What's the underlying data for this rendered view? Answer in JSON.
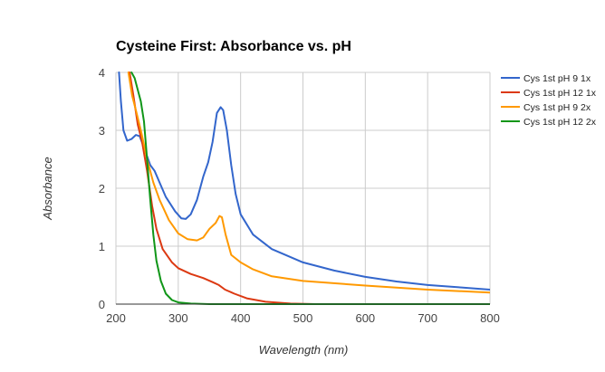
{
  "chart_data": {
    "type": "line",
    "title": "Cysteine First: Absorbance vs. pH",
    "xlabel": "Wavelength (nm)",
    "ylabel": "Absorbance",
    "xlim": [
      200,
      800
    ],
    "ylim": [
      0,
      4
    ],
    "x_ticks": [
      "200",
      "300",
      "400",
      "500",
      "600",
      "700",
      "800"
    ],
    "y_ticks": [
      "0",
      "1",
      "2",
      "3",
      "4"
    ],
    "grid": true,
    "legend_position": "right",
    "series": [
      {
        "name": "Cys 1st pH 9 1x",
        "color": "#3366cc",
        "points": [
          [
            205,
            4.0
          ],
          [
            208,
            3.5
          ],
          [
            212,
            3.0
          ],
          [
            218,
            2.82
          ],
          [
            225,
            2.85
          ],
          [
            232,
            2.92
          ],
          [
            238,
            2.9
          ],
          [
            245,
            2.7
          ],
          [
            255,
            2.4
          ],
          [
            262,
            2.3
          ],
          [
            270,
            2.1
          ],
          [
            280,
            1.85
          ],
          [
            295,
            1.6
          ],
          [
            305,
            1.48
          ],
          [
            312,
            1.47
          ],
          [
            320,
            1.55
          ],
          [
            330,
            1.8
          ],
          [
            340,
            2.2
          ],
          [
            348,
            2.45
          ],
          [
            355,
            2.8
          ],
          [
            362,
            3.3
          ],
          [
            368,
            3.4
          ],
          [
            372,
            3.35
          ],
          [
            378,
            3.0
          ],
          [
            385,
            2.4
          ],
          [
            392,
            1.9
          ],
          [
            400,
            1.55
          ],
          [
            420,
            1.2
          ],
          [
            450,
            0.95
          ],
          [
            500,
            0.72
          ],
          [
            550,
            0.58
          ],
          [
            600,
            0.47
          ],
          [
            650,
            0.39
          ],
          [
            700,
            0.33
          ],
          [
            750,
            0.29
          ],
          [
            800,
            0.25
          ]
        ]
      },
      {
        "name": "Cys 1st pH 12 1x",
        "color": "#dc3912",
        "points": [
          [
            222,
            4.0
          ],
          [
            228,
            3.6
          ],
          [
            235,
            3.1
          ],
          [
            242,
            2.8
          ],
          [
            250,
            2.3
          ],
          [
            258,
            1.7
          ],
          [
            265,
            1.3
          ],
          [
            275,
            0.95
          ],
          [
            290,
            0.72
          ],
          [
            300,
            0.62
          ],
          [
            320,
            0.52
          ],
          [
            340,
            0.45
          ],
          [
            355,
            0.38
          ],
          [
            365,
            0.33
          ],
          [
            375,
            0.25
          ],
          [
            390,
            0.18
          ],
          [
            410,
            0.1
          ],
          [
            440,
            0.04
          ],
          [
            480,
            0.01
          ],
          [
            520,
            0.0
          ],
          [
            800,
            0.0
          ]
        ]
      },
      {
        "name": "Cys 1st pH 9 2x",
        "color": "#ff9900",
        "points": [
          [
            220,
            4.0
          ],
          [
            226,
            3.6
          ],
          [
            232,
            3.35
          ],
          [
            240,
            3.0
          ],
          [
            250,
            2.5
          ],
          [
            260,
            2.1
          ],
          [
            270,
            1.8
          ],
          [
            285,
            1.45
          ],
          [
            300,
            1.22
          ],
          [
            315,
            1.12
          ],
          [
            330,
            1.1
          ],
          [
            340,
            1.15
          ],
          [
            350,
            1.3
          ],
          [
            360,
            1.4
          ],
          [
            366,
            1.52
          ],
          [
            370,
            1.5
          ],
          [
            376,
            1.2
          ],
          [
            385,
            0.85
          ],
          [
            400,
            0.72
          ],
          [
            420,
            0.6
          ],
          [
            450,
            0.48
          ],
          [
            500,
            0.4
          ],
          [
            600,
            0.32
          ],
          [
            700,
            0.25
          ],
          [
            800,
            0.2
          ]
        ]
      },
      {
        "name": "Cys 1st pH 12 2x",
        "color": "#109618",
        "points": [
          [
            225,
            4.0
          ],
          [
            230,
            3.9
          ],
          [
            235,
            3.7
          ],
          [
            240,
            3.5
          ],
          [
            245,
            3.15
          ],
          [
            250,
            2.5
          ],
          [
            255,
            1.8
          ],
          [
            260,
            1.2
          ],
          [
            265,
            0.75
          ],
          [
            272,
            0.4
          ],
          [
            280,
            0.18
          ],
          [
            290,
            0.07
          ],
          [
            300,
            0.03
          ],
          [
            320,
            0.01
          ],
          [
            350,
            0.0
          ],
          [
            800,
            0.0
          ]
        ]
      }
    ]
  }
}
